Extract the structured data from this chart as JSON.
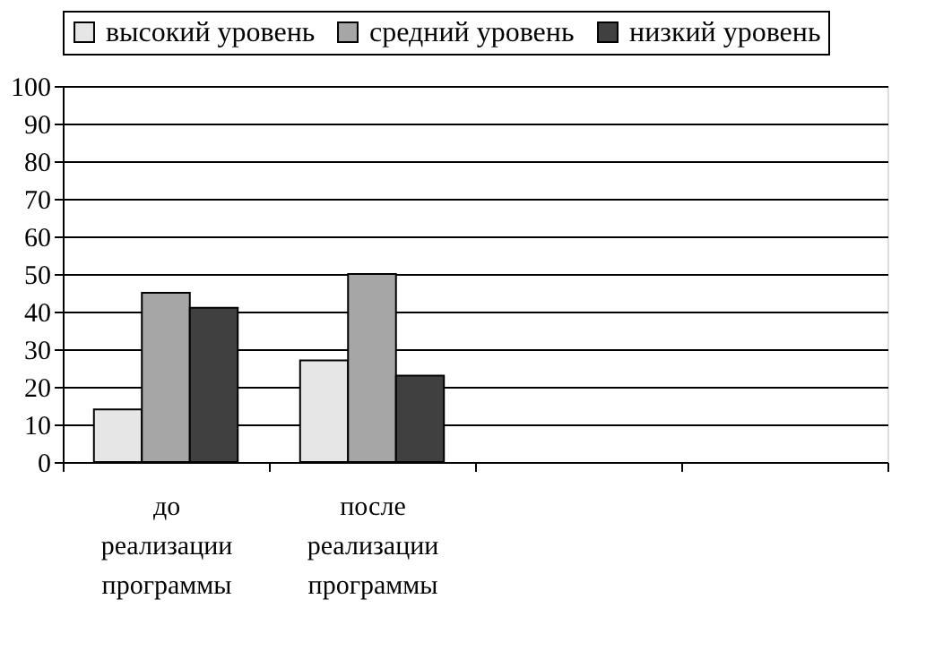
{
  "chart_data": {
    "type": "bar",
    "categories": [
      "до реализации программы",
      "после реализации программы",
      null,
      null
    ],
    "series": [
      {
        "name": "высокий уровень",
        "color": "#e6e6e6",
        "values": [
          14,
          27,
          null,
          null
        ]
      },
      {
        "name": "средний уровень",
        "color": "#a6a6a6",
        "values": [
          45,
          50,
          null,
          null
        ]
      },
      {
        "name": "низкий уровень",
        "color": "#404040",
        "values": [
          41,
          23,
          null,
          null
        ]
      }
    ],
    "ylim": [
      0,
      100
    ],
    "yticks": [
      0,
      10,
      20,
      30,
      40,
      50,
      60,
      70,
      80,
      90,
      100
    ],
    "grid": "y",
    "legend": "top"
  }
}
